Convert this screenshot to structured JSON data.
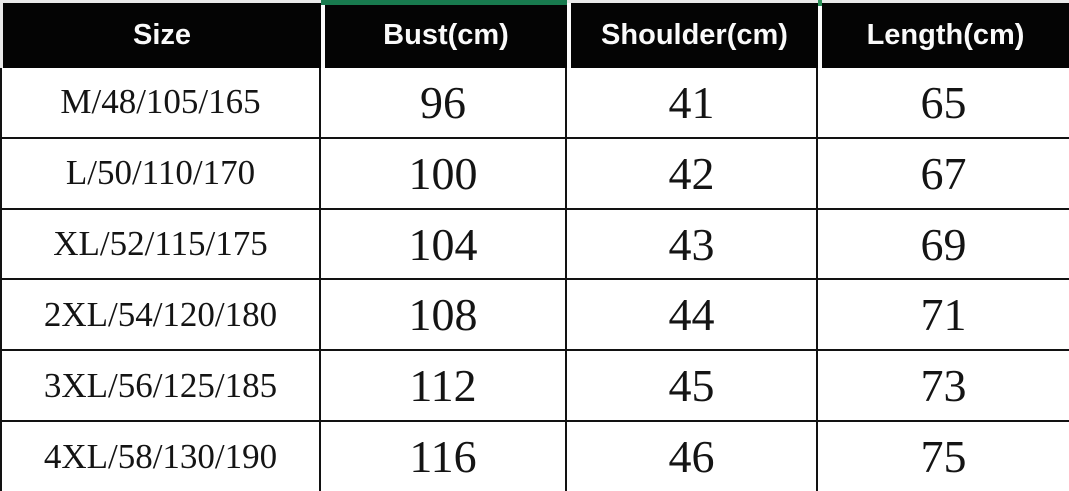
{
  "chart_data": {
    "type": "table",
    "columns": [
      "Size",
      "Bust(cm)",
      "Shoulder(cm)",
      "Length(cm)"
    ],
    "rows": [
      [
        "M/48/105/165",
        96,
        41,
        65
      ],
      [
        "L/50/110/170",
        100,
        42,
        67
      ],
      [
        "XL/52/115/175",
        104,
        43,
        69
      ],
      [
        "2XL/54/120/180",
        108,
        44,
        71
      ],
      [
        "3XL/56/125/185",
        112,
        45,
        73
      ],
      [
        "4XL/58/130/190",
        116,
        46,
        75
      ]
    ],
    "layout_hints": {
      "header_style": "black background, white bold sans-serif text",
      "body_style": "white background, black serif text, thin black gridlines",
      "accent": "green bar above Bust(cm) header column"
    }
  },
  "header": {
    "size": "Size",
    "bust": "Bust(cm)",
    "shoulder": "Shoulder(cm)",
    "length": "Length(cm)"
  },
  "rows": [
    {
      "size": "M/48/105/165",
      "bust": "96",
      "shoulder": "41",
      "length": "65"
    },
    {
      "size": "L/50/110/170",
      "bust": "100",
      "shoulder": "42",
      "length": "67"
    },
    {
      "size": "XL/52/115/175",
      "bust": "104",
      "shoulder": "43",
      "length": "69"
    },
    {
      "size": "2XL/54/120/180",
      "bust": "108",
      "shoulder": "44",
      "length": "71"
    },
    {
      "size": "3XL/56/125/185",
      "bust": "112",
      "shoulder": "45",
      "length": "73"
    },
    {
      "size": "4XL/58/130/190",
      "bust": "116",
      "shoulder": "46",
      "length": "75"
    }
  ],
  "colors": {
    "header_bg": "#040404",
    "header_text": "#fafafa",
    "body_text": "#141414",
    "grid_line": "#121212",
    "accent_green": "#187a4e",
    "outer_margin": "#e9e9e9"
  }
}
